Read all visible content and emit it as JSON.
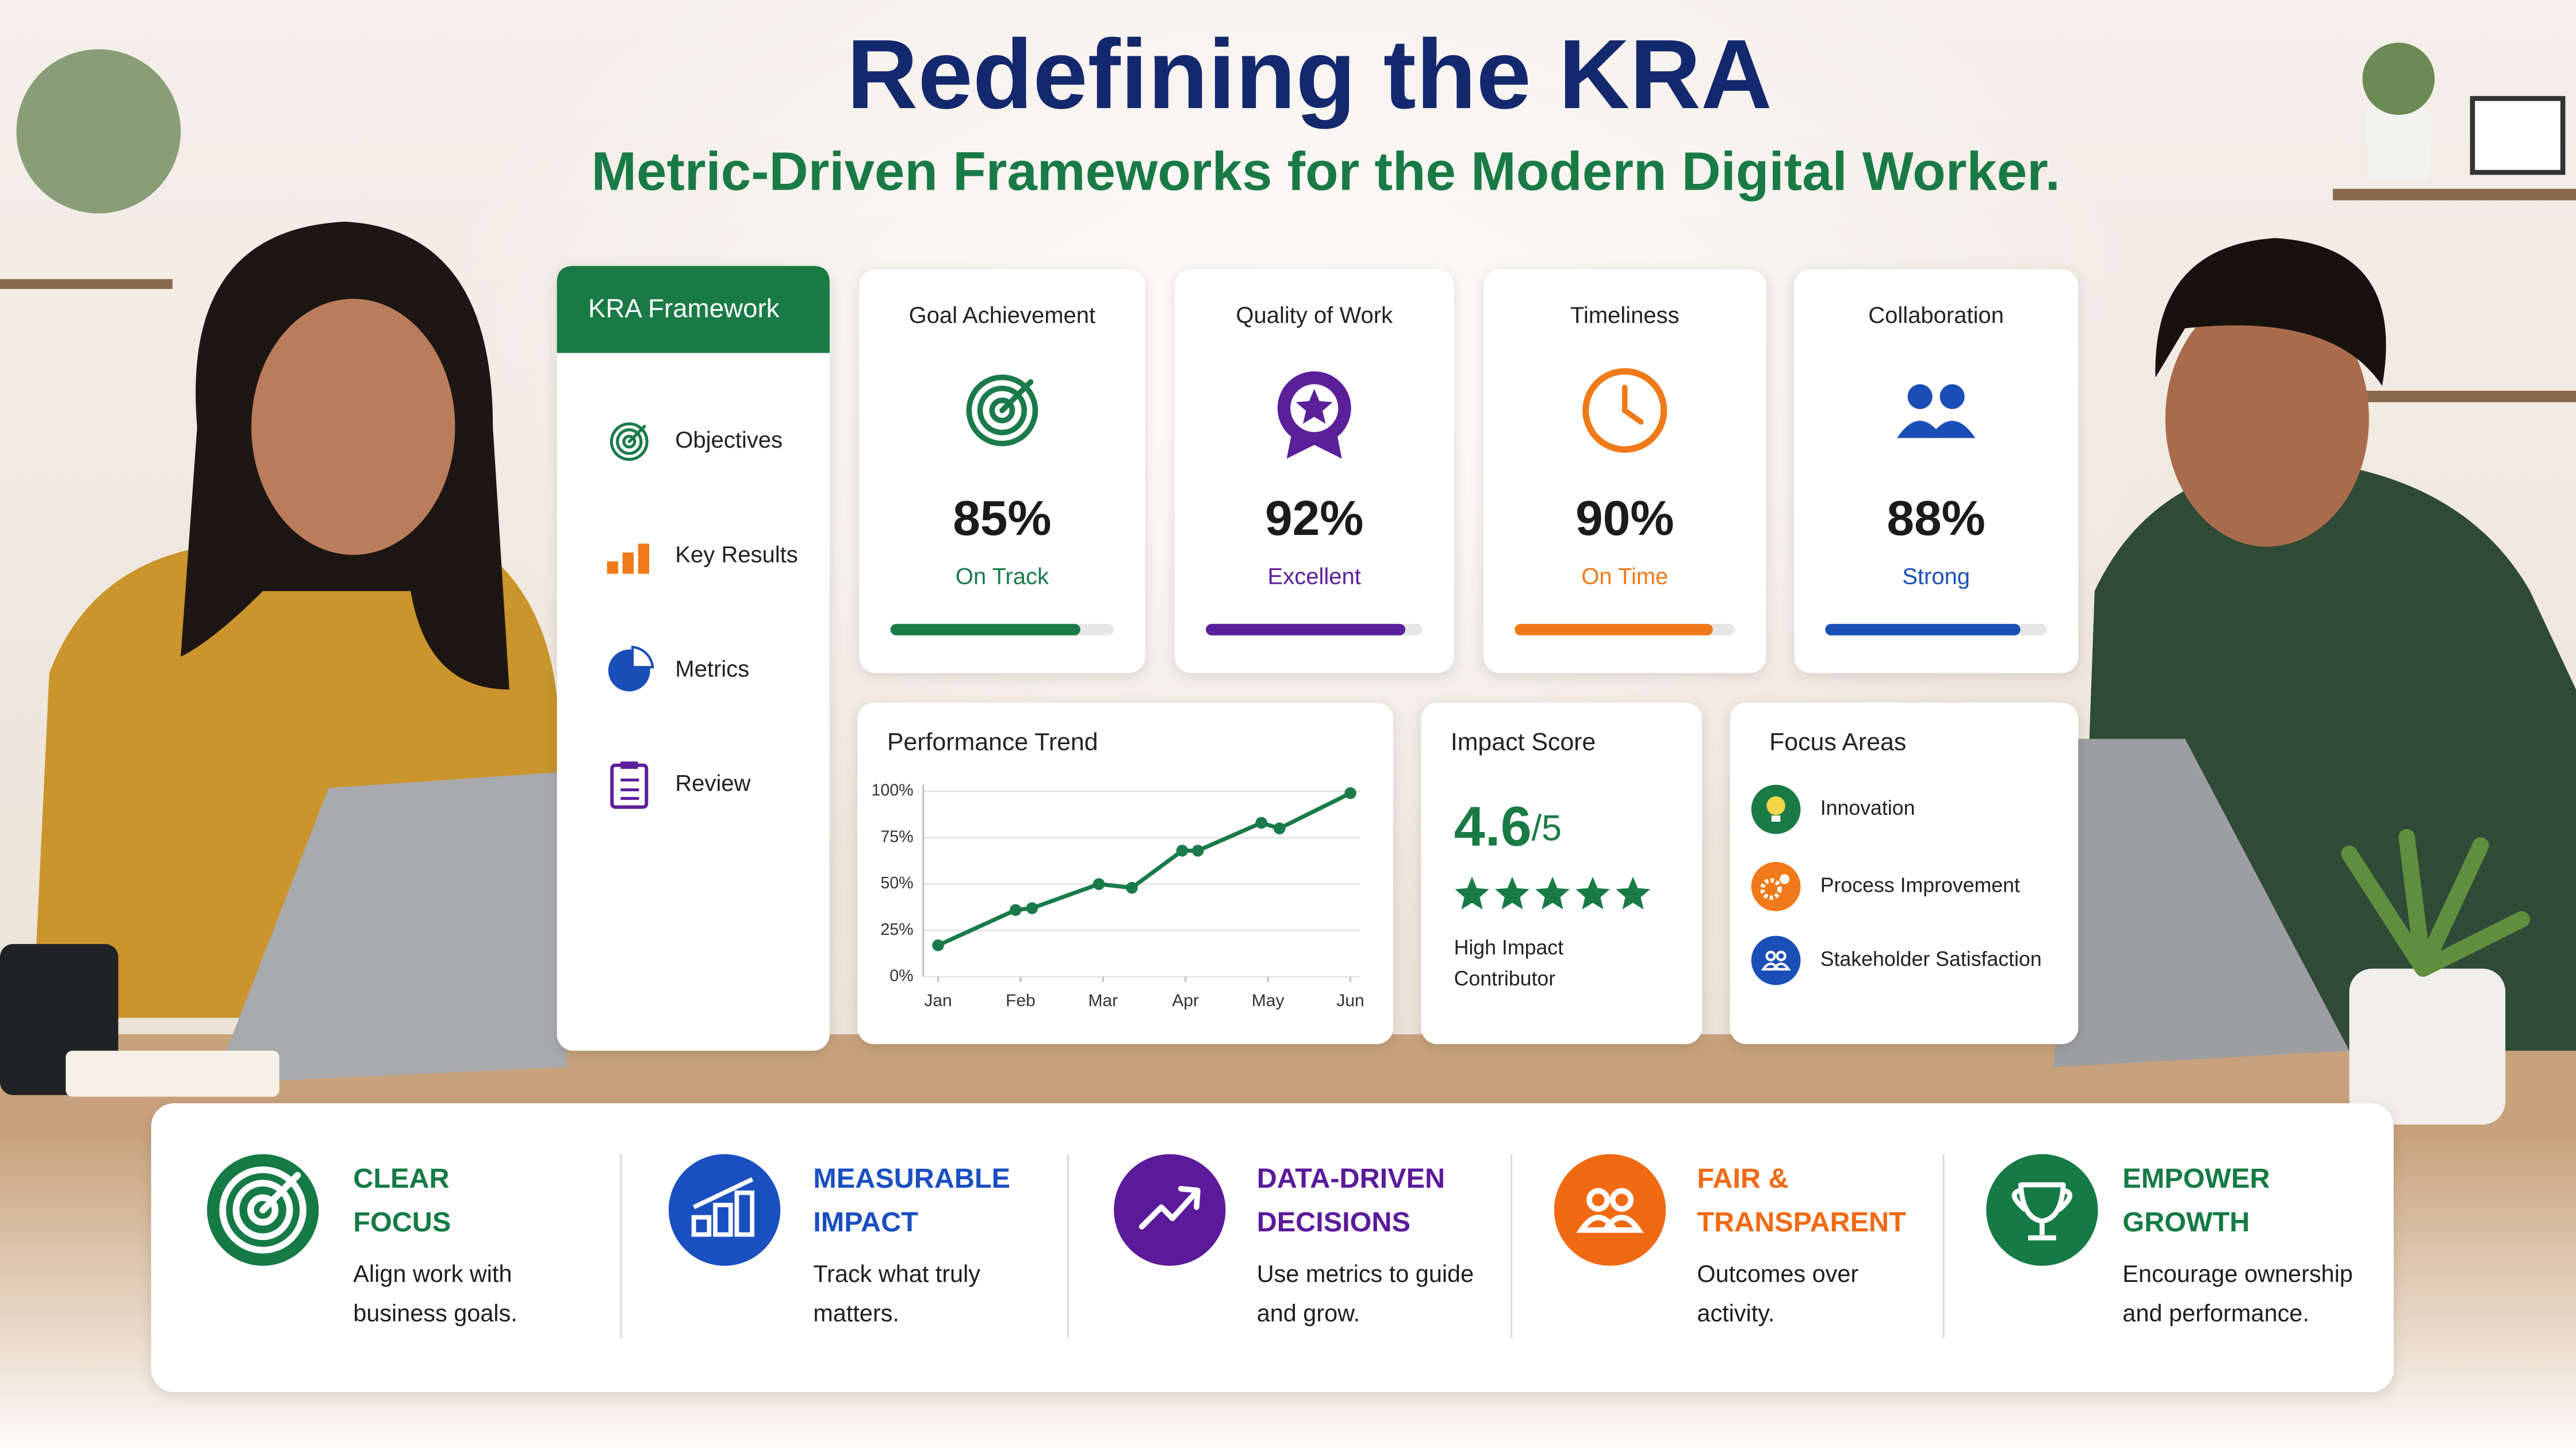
{
  "header": {
    "title": "Redefining the KRA",
    "subtitle": "Metric-Driven Frameworks for the Modern Digital Worker."
  },
  "sidebar": {
    "title": "KRA Framework",
    "items": [
      "Objectives",
      "Key Results",
      "Metrics",
      "Review"
    ]
  },
  "metric_cards": [
    {
      "title": "Goal Achievement",
      "value": 85,
      "value_label": "85%",
      "status": "On Track",
      "color": "#1a7a4a"
    },
    {
      "title": "Quality of Work",
      "value": 92,
      "value_label": "92%",
      "status": "Excellent",
      "color": "#5b1f9a"
    },
    {
      "title": "Timeliness",
      "value": 90,
      "value_label": "90%",
      "status": "On Time",
      "color": "#f07a1a"
    },
    {
      "title": "Collaboration",
      "value": 88,
      "value_label": "88%",
      "status": "Strong",
      "color": "#1b4fb8"
    }
  ],
  "performance_trend": {
    "type": "line",
    "title": "Performance Trend",
    "x": [
      0,
      0.94,
      1.14,
      1.95,
      2.35,
      2.96,
      3.15,
      3.92,
      4.14,
      5
    ],
    "values": [
      17,
      36,
      37,
      50,
      48,
      68,
      68,
      83,
      80,
      99
    ],
    "xlim": [
      0,
      5
    ],
    "xticks": [
      {
        "value": 0,
        "label": "Jan"
      },
      {
        "value": 1,
        "label": "Feb"
      },
      {
        "value": 2,
        "label": "Mar"
      },
      {
        "value": 3,
        "label": "Apr"
      },
      {
        "value": 4,
        "label": "May"
      },
      {
        "value": 5,
        "label": "Jun"
      }
    ],
    "ylim": [
      0,
      100
    ],
    "yticks": [
      {
        "value": 0,
        "label": "0%"
      },
      {
        "value": 25,
        "label": "25%"
      },
      {
        "value": 50,
        "label": "50%"
      },
      {
        "value": 75,
        "label": "75%"
      },
      {
        "value": 100,
        "label": "100%"
      }
    ],
    "color": "#1a7a4a",
    "grid": true
  },
  "impact_score": {
    "title": "Impact Score",
    "value": 4.6,
    "scale_label": "/5",
    "caption_lines": [
      "High Impact",
      "Contributor"
    ]
  },
  "focus_areas": {
    "title": "Focus Areas",
    "items": [
      "Innovation",
      "Process Improvement",
      "Stakeholder Satisfaction"
    ]
  },
  "features": [
    {
      "title_lines": [
        "CLEAR",
        "FOCUS"
      ],
      "description_lines": [
        "Align work with",
        "business goals."
      ],
      "color": "#157a45"
    },
    {
      "title_lines": [
        "MEASURABLE",
        "IMPACT"
      ],
      "description_lines": [
        "Track what truly",
        "matters."
      ],
      "color": "#1a4fc0"
    },
    {
      "title_lines": [
        "DATA-DRIVEN",
        "DECISIONS"
      ],
      "description_lines": [
        "Use metrics to guide",
        "and grow."
      ],
      "color": "#5a1a9a"
    },
    {
      "title_lines": [
        "FAIR &",
        "TRANSPARENT"
      ],
      "description_lines": [
        "Outcomes over",
        "activity."
      ],
      "color": "#f06a14"
    },
    {
      "title_lines": [
        "EMPOWER",
        "GROWTH"
      ],
      "description_lines": [
        "Encourage ownership",
        "and performance."
      ],
      "color": "#157a45"
    }
  ]
}
